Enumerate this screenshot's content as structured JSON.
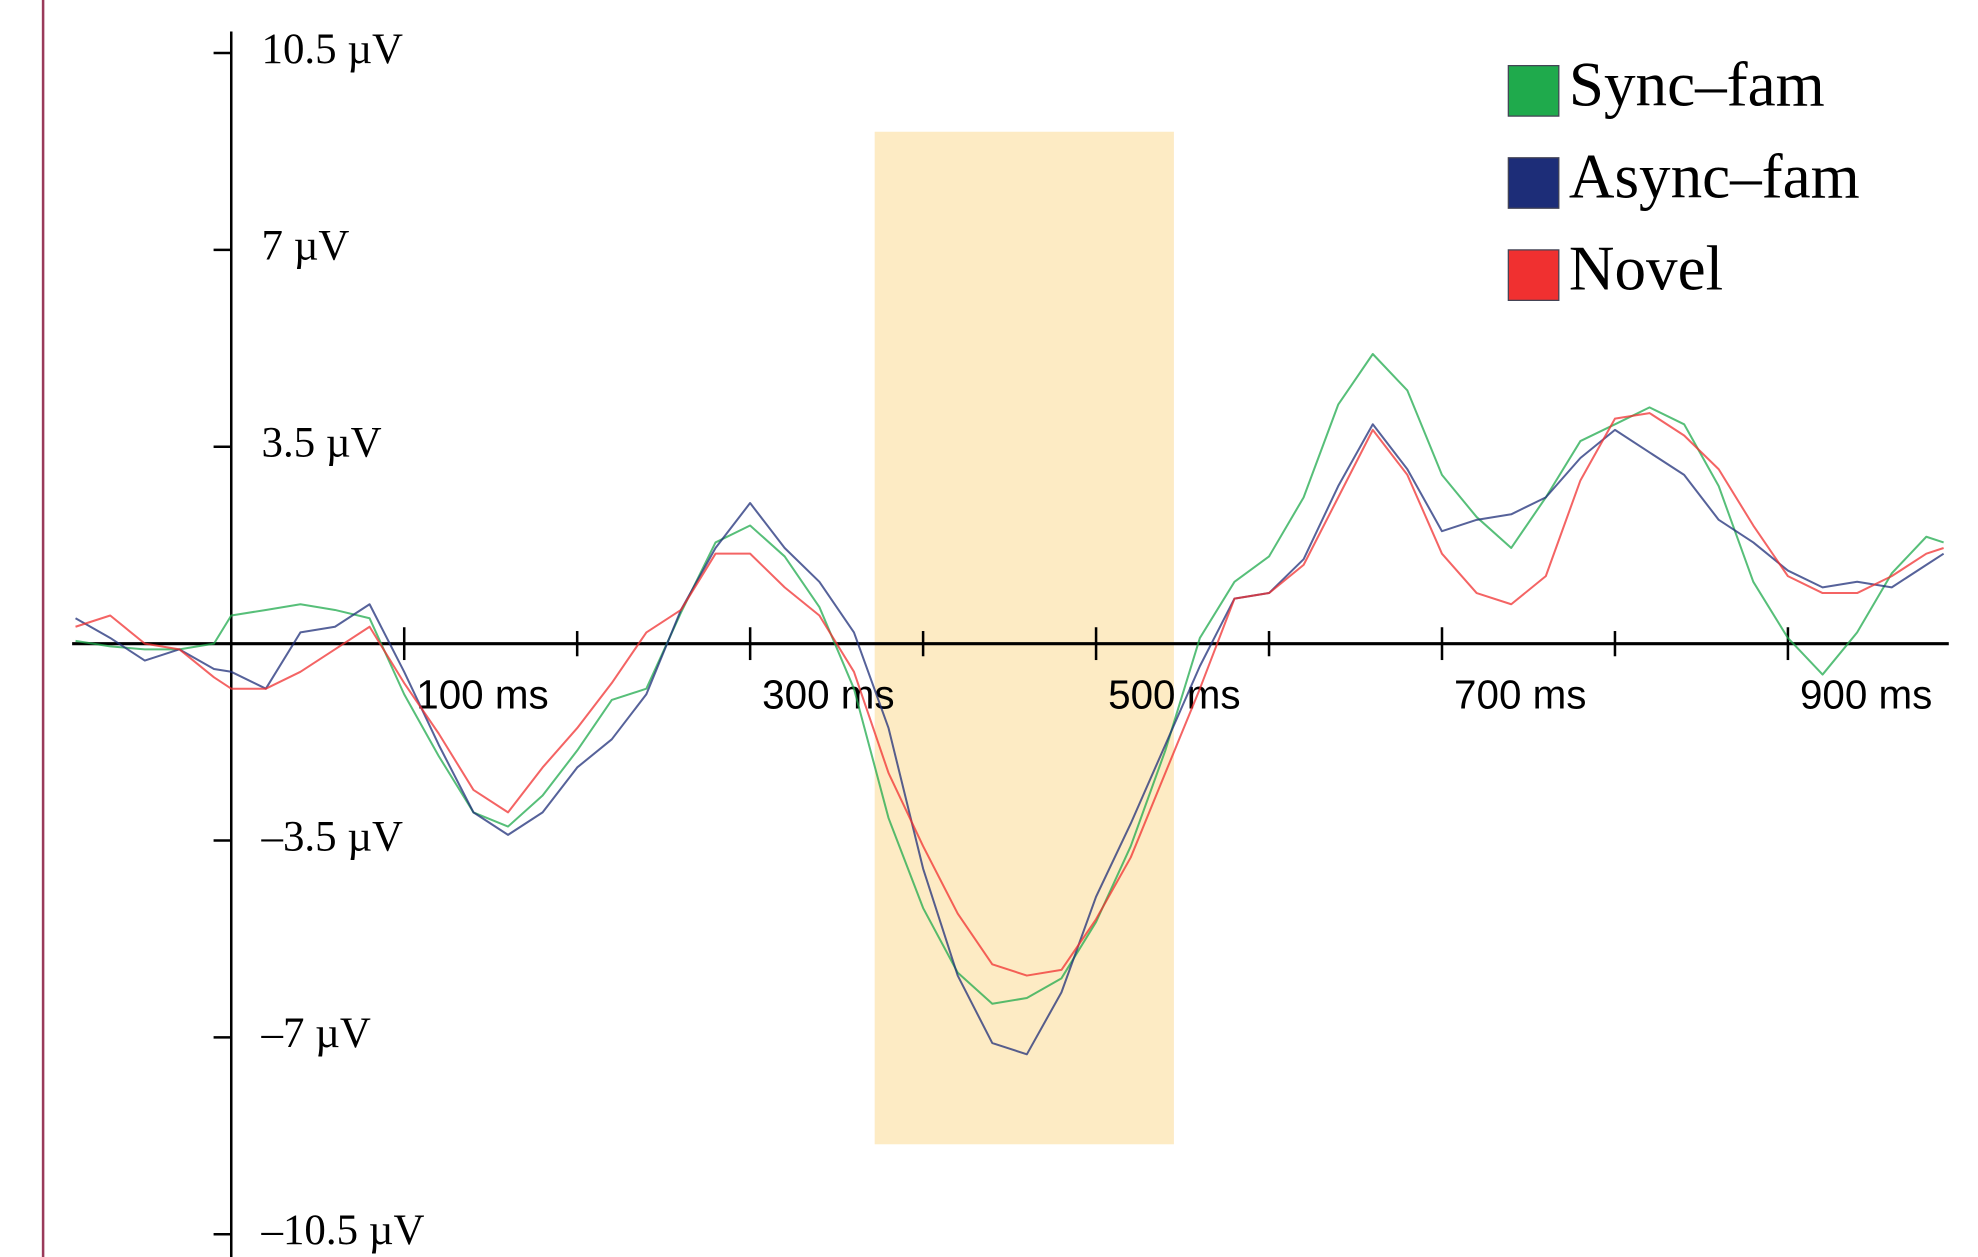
{
  "chart_data": {
    "type": "line",
    "x": [
      -90,
      -70,
      -50,
      -30,
      -10,
      0,
      20,
      40,
      60,
      80,
      100,
      120,
      140,
      160,
      180,
      200,
      220,
      240,
      260,
      280,
      300,
      320,
      340,
      360,
      380,
      400,
      420,
      440,
      460,
      480,
      500,
      520,
      540,
      560,
      580,
      600,
      620,
      640,
      660,
      680,
      700,
      720,
      740,
      760,
      780,
      800,
      820,
      840,
      860,
      880,
      900,
      920,
      940,
      960,
      980,
      990
    ],
    "series": [
      {
        "name": "Sync–fam",
        "color": "#1faa4c",
        "values": [
          0.05,
          -0.05,
          -0.1,
          -0.1,
          0,
          0.5,
          0.6,
          0.7,
          0.6,
          0.45,
          -0.9,
          -2.0,
          -3.0,
          -3.25,
          -2.7,
          -1.9,
          -1.0,
          -0.8,
          0.55,
          1.8,
          2.1,
          1.55,
          0.65,
          -0.8,
          -3.1,
          -4.7,
          -5.85,
          -6.4,
          -6.3,
          -5.95,
          -4.95,
          -3.6,
          -1.9,
          0.1,
          1.1,
          1.55,
          2.6,
          4.25,
          5.15,
          4.5,
          3.0,
          2.25,
          1.7,
          2.6,
          3.6,
          3.9,
          4.2,
          3.9,
          2.8,
          1.1,
          0.1,
          -0.55,
          0.2,
          1.25,
          1.9,
          1.8
        ]
      },
      {
        "name": "Async–fam",
        "color": "#1d2d78",
        "values": [
          0.45,
          0.1,
          -0.3,
          -0.1,
          -0.45,
          -0.5,
          -0.8,
          0.2,
          0.3,
          0.7,
          -0.5,
          -1.8,
          -3.0,
          -3.4,
          -3.0,
          -2.2,
          -1.7,
          -0.9,
          0.6,
          1.7,
          2.5,
          1.7,
          1.1,
          0.2,
          -1.5,
          -4.0,
          -5.9,
          -7.1,
          -7.3,
          -6.2,
          -4.5,
          -3.2,
          -1.8,
          -0.4,
          0.8,
          0.9,
          1.5,
          2.8,
          3.9,
          3.1,
          2.0,
          2.2,
          2.3,
          2.6,
          3.3,
          3.8,
          3.4,
          3.0,
          2.2,
          1.8,
          1.3,
          1.0,
          1.1,
          1.0,
          1.4,
          1.6
        ]
      },
      {
        "name": "Novel",
        "color": "#f03030",
        "values": [
          0.3,
          0.5,
          0.0,
          -0.1,
          -0.6,
          -0.8,
          -0.8,
          -0.5,
          -0.1,
          0.3,
          -0.7,
          -1.6,
          -2.6,
          -3.0,
          -2.2,
          -1.5,
          -0.7,
          0.2,
          0.6,
          1.6,
          1.6,
          1.0,
          0.5,
          -0.5,
          -2.3,
          -3.6,
          -4.8,
          -5.7,
          -5.9,
          -5.8,
          -4.9,
          -3.8,
          -2.3,
          -0.8,
          0.8,
          0.9,
          1.4,
          2.6,
          3.8,
          3.0,
          1.6,
          0.9,
          0.7,
          1.2,
          2.9,
          4.0,
          4.1,
          3.7,
          3.1,
          2.1,
          1.2,
          0.9,
          0.9,
          1.2,
          1.6,
          1.7
        ]
      }
    ],
    "xlim": [
      -92,
      993
    ],
    "ylim": [
      -10.5,
      10.5
    ],
    "xticks": [
      {
        "value": 100,
        "label": "100 ms"
      },
      {
        "value": 300,
        "label": "300 ms"
      },
      {
        "value": 500,
        "label": "500 ms"
      },
      {
        "value": 700,
        "label": "700 ms"
      },
      {
        "value": 900,
        "label": "900 ms"
      }
    ],
    "xminor_ticks": [
      200,
      400,
      600,
      800
    ],
    "yticks": [
      {
        "value": 10.5,
        "label": "10.5 µV"
      },
      {
        "value": 7,
        "label": "7 µV"
      },
      {
        "value": 3.5,
        "label": "3.5 µV"
      },
      {
        "value": -3.5,
        "label": "–3.5 µV"
      },
      {
        "value": -7,
        "label": "–7 µV"
      },
      {
        "value": -10.5,
        "label": "–10.5 µV"
      }
    ],
    "shade": {
      "x": [
        372,
        545
      ],
      "y": [
        -8.9,
        9.1
      ],
      "color": "#fdebc4"
    },
    "legend": "upper right",
    "grid": false
  }
}
